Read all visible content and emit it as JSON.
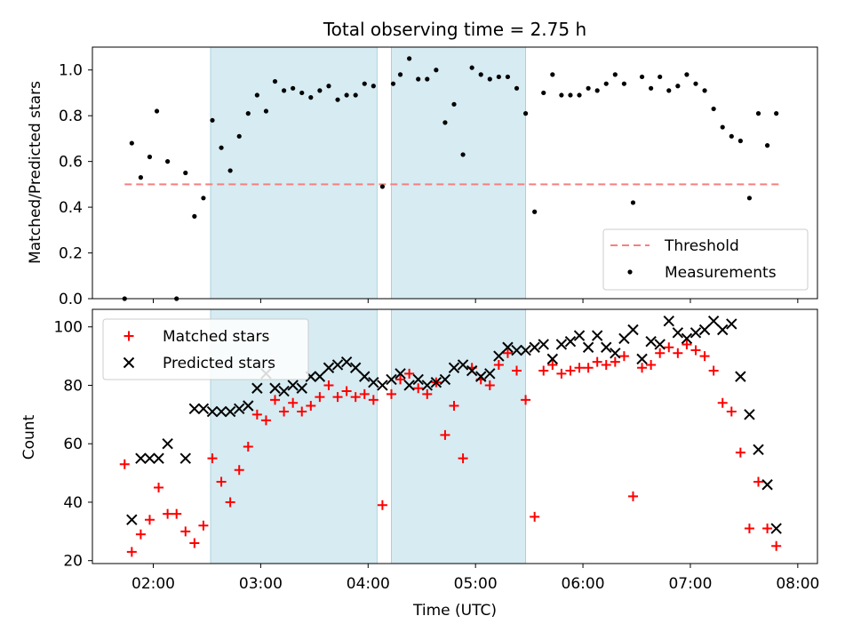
{
  "chart_data": [
    {
      "type": "scatter",
      "title": "Total observing time = 2.75 h",
      "xlabel": "",
      "ylabel": "Matched/Predicted stars",
      "xlim": [
        "01:26",
        "08:11"
      ],
      "ylim": [
        0,
        1.1
      ],
      "yticks": [
        "0.0",
        "0.2",
        "0.4",
        "0.6",
        "0.8",
        "1.0"
      ],
      "shaded_intervals": [
        [
          "02:32",
          "04:05"
        ],
        [
          "04:13",
          "05:28"
        ]
      ],
      "legend_position": "lower right",
      "threshold": {
        "name": "Threshold",
        "y": 0.5,
        "x": [
          "01:44",
          "07:50"
        ],
        "color": "#f77f7f"
      },
      "series": [
        {
          "name": "Measurements",
          "color": "#000000",
          "marker": "dot",
          "points": [
            [
              "01:44",
              0.0
            ],
            [
              "01:48",
              0.68
            ],
            [
              "01:53",
              0.53
            ],
            [
              "01:58",
              0.62
            ],
            [
              "02:02",
              0.82
            ],
            [
              "02:08",
              0.6
            ],
            [
              "02:13",
              0.0
            ],
            [
              "02:18",
              0.55
            ],
            [
              "02:23",
              0.36
            ],
            [
              "02:28",
              0.44
            ],
            [
              "02:33",
              0.78
            ],
            [
              "02:38",
              0.66
            ],
            [
              "02:43",
              0.56
            ],
            [
              "02:48",
              0.71
            ],
            [
              "02:53",
              0.81
            ],
            [
              "02:58",
              0.89
            ],
            [
              "03:03",
              0.82
            ],
            [
              "03:08",
              0.95
            ],
            [
              "03:13",
              0.91
            ],
            [
              "03:18",
              0.92
            ],
            [
              "03:23",
              0.9
            ],
            [
              "03:28",
              0.88
            ],
            [
              "03:33",
              0.91
            ],
            [
              "03:38",
              0.93
            ],
            [
              "03:43",
              0.87
            ],
            [
              "03:48",
              0.89
            ],
            [
              "03:53",
              0.89
            ],
            [
              "03:58",
              0.94
            ],
            [
              "04:03",
              0.93
            ],
            [
              "04:08",
              0.49
            ],
            [
              "04:14",
              0.94
            ],
            [
              "04:18",
              0.98
            ],
            [
              "04:23",
              1.05
            ],
            [
              "04:28",
              0.96
            ],
            [
              "04:33",
              0.96
            ],
            [
              "04:38",
              1.0
            ],
            [
              "04:43",
              0.77
            ],
            [
              "04:48",
              0.85
            ],
            [
              "04:53",
              0.63
            ],
            [
              "04:58",
              1.01
            ],
            [
              "05:03",
              0.98
            ],
            [
              "05:08",
              0.96
            ],
            [
              "05:13",
              0.97
            ],
            [
              "05:18",
              0.97
            ],
            [
              "05:23",
              0.92
            ],
            [
              "05:28",
              0.81
            ],
            [
              "05:33",
              0.38
            ],
            [
              "05:38",
              0.9
            ],
            [
              "05:43",
              0.98
            ],
            [
              "05:48",
              0.89
            ],
            [
              "05:53",
              0.89
            ],
            [
              "05:58",
              0.89
            ],
            [
              "06:03",
              0.92
            ],
            [
              "06:08",
              0.91
            ],
            [
              "06:13",
              0.94
            ],
            [
              "06:18",
              0.98
            ],
            [
              "06:23",
              0.94
            ],
            [
              "06:28",
              0.42
            ],
            [
              "06:33",
              0.97
            ],
            [
              "06:38",
              0.92
            ],
            [
              "06:43",
              0.97
            ],
            [
              "06:48",
              0.91
            ],
            [
              "06:53",
              0.93
            ],
            [
              "06:58",
              0.98
            ],
            [
              "07:03",
              0.94
            ],
            [
              "07:08",
              0.91
            ],
            [
              "07:13",
              0.83
            ],
            [
              "07:18",
              0.75
            ],
            [
              "07:23",
              0.71
            ],
            [
              "07:28",
              0.69
            ],
            [
              "07:33",
              0.44
            ],
            [
              "07:38",
              0.81
            ],
            [
              "07:43",
              0.67
            ],
            [
              "07:48",
              0.81
            ]
          ]
        }
      ]
    },
    {
      "type": "scatter",
      "title": "",
      "xlabel": "Time (UTC)",
      "ylabel": "Count",
      "xlim": [
        "01:26",
        "08:11"
      ],
      "ylim": [
        19,
        106
      ],
      "xticks": [
        "02:00",
        "03:00",
        "04:00",
        "05:00",
        "06:00",
        "07:00",
        "08:00"
      ],
      "yticks": [
        "20",
        "40",
        "60",
        "80",
        "100"
      ],
      "shaded_intervals": [
        [
          "02:32",
          "04:05"
        ],
        [
          "04:13",
          "05:28"
        ]
      ],
      "legend_position": "upper left",
      "series": [
        {
          "name": "Matched stars",
          "color": "#ff0000",
          "marker": "plus",
          "points": [
            [
              "01:44",
              53
            ],
            [
              "01:48",
              23
            ],
            [
              "01:53",
              29
            ],
            [
              "01:58",
              34
            ],
            [
              "02:03",
              45
            ],
            [
              "02:08",
              36
            ],
            [
              "02:13",
              36
            ],
            [
              "02:18",
              30
            ],
            [
              "02:23",
              26
            ],
            [
              "02:28",
              32
            ],
            [
              "02:33",
              55
            ],
            [
              "02:38",
              47
            ],
            [
              "02:43",
              40
            ],
            [
              "02:48",
              51
            ],
            [
              "02:53",
              59
            ],
            [
              "02:58",
              70
            ],
            [
              "03:03",
              68
            ],
            [
              "03:08",
              75
            ],
            [
              "03:13",
              71
            ],
            [
              "03:18",
              74
            ],
            [
              "03:23",
              71
            ],
            [
              "03:28",
              73
            ],
            [
              "03:33",
              76
            ],
            [
              "03:38",
              80
            ],
            [
              "03:43",
              76
            ],
            [
              "03:48",
              78
            ],
            [
              "03:53",
              76
            ],
            [
              "03:58",
              77
            ],
            [
              "04:03",
              75
            ],
            [
              "04:08",
              39
            ],
            [
              "04:13",
              77
            ],
            [
              "04:18",
              82
            ],
            [
              "04:23",
              84
            ],
            [
              "04:28",
              79
            ],
            [
              "04:33",
              77
            ],
            [
              "04:38",
              81
            ],
            [
              "04:43",
              63
            ],
            [
              "04:48",
              73
            ],
            [
              "04:53",
              55
            ],
            [
              "04:58",
              86
            ],
            [
              "05:03",
              82
            ],
            [
              "05:08",
              80
            ],
            [
              "05:13",
              87
            ],
            [
              "05:18",
              91
            ],
            [
              "05:23",
              85
            ],
            [
              "05:28",
              75
            ],
            [
              "05:33",
              35
            ],
            [
              "05:38",
              85
            ],
            [
              "05:43",
              87
            ],
            [
              "05:48",
              84
            ],
            [
              "05:53",
              85
            ],
            [
              "05:58",
              86
            ],
            [
              "06:03",
              86
            ],
            [
              "06:08",
              88
            ],
            [
              "06:13",
              87
            ],
            [
              "06:18",
              88
            ],
            [
              "06:23",
              90
            ],
            [
              "06:28",
              42
            ],
            [
              "06:33",
              86
            ],
            [
              "06:38",
              87
            ],
            [
              "06:43",
              91
            ],
            [
              "06:48",
              93
            ],
            [
              "06:53",
              91
            ],
            [
              "06:58",
              94
            ],
            [
              "07:03",
              92
            ],
            [
              "07:08",
              90
            ],
            [
              "07:13",
              85
            ],
            [
              "07:18",
              74
            ],
            [
              "07:23",
              71
            ],
            [
              "07:28",
              57
            ],
            [
              "07:33",
              31
            ],
            [
              "07:38",
              47
            ],
            [
              "07:43",
              31
            ],
            [
              "07:48",
              25
            ]
          ]
        },
        {
          "name": "Predicted stars",
          "color": "#000000",
          "marker": "x",
          "points": [
            [
              "01:48",
              34
            ],
            [
              "01:53",
              55
            ],
            [
              "01:58",
              55
            ],
            [
              "02:03",
              55
            ],
            [
              "02:08",
              60
            ],
            [
              "02:18",
              55
            ],
            [
              "02:23",
              72
            ],
            [
              "02:28",
              72
            ],
            [
              "02:33",
              71
            ],
            [
              "02:38",
              71
            ],
            [
              "02:43",
              71
            ],
            [
              "02:48",
              72
            ],
            [
              "02:53",
              73
            ],
            [
              "02:58",
              79
            ],
            [
              "03:03",
              84
            ],
            [
              "03:08",
              79
            ],
            [
              "03:13",
              78
            ],
            [
              "03:18",
              80
            ],
            [
              "03:23",
              79
            ],
            [
              "03:28",
              83
            ],
            [
              "03:33",
              83
            ],
            [
              "03:38",
              86
            ],
            [
              "03:43",
              87
            ],
            [
              "03:48",
              88
            ],
            [
              "03:53",
              86
            ],
            [
              "03:58",
              83
            ],
            [
              "04:03",
              81
            ],
            [
              "04:08",
              80
            ],
            [
              "04:13",
              82
            ],
            [
              "04:18",
              84
            ],
            [
              "04:23",
              80
            ],
            [
              "04:28",
              82
            ],
            [
              "04:33",
              80
            ],
            [
              "04:38",
              81
            ],
            [
              "04:43",
              82
            ],
            [
              "04:48",
              86
            ],
            [
              "04:53",
              87
            ],
            [
              "04:58",
              85
            ],
            [
              "05:03",
              83
            ],
            [
              "05:08",
              84
            ],
            [
              "05:13",
              90
            ],
            [
              "05:18",
              93
            ],
            [
              "05:23",
              92
            ],
            [
              "05:28",
              92
            ],
            [
              "05:33",
              93
            ],
            [
              "05:38",
              94
            ],
            [
              "05:43",
              89
            ],
            [
              "05:48",
              94
            ],
            [
              "05:53",
              95
            ],
            [
              "05:58",
              97
            ],
            [
              "06:03",
              93
            ],
            [
              "06:08",
              97
            ],
            [
              "06:13",
              93
            ],
            [
              "06:18",
              91
            ],
            [
              "06:23",
              96
            ],
            [
              "06:28",
              99
            ],
            [
              "06:33",
              89
            ],
            [
              "06:38",
              95
            ],
            [
              "06:43",
              94
            ],
            [
              "06:48",
              102
            ],
            [
              "06:53",
              98
            ],
            [
              "06:58",
              96
            ],
            [
              "07:03",
              98
            ],
            [
              "07:08",
              99
            ],
            [
              "07:13",
              102
            ],
            [
              "07:18",
              99
            ],
            [
              "07:23",
              101
            ],
            [
              "07:28",
              83
            ],
            [
              "07:33",
              70
            ],
            [
              "07:38",
              58
            ],
            [
              "07:43",
              46
            ],
            [
              "07:48",
              31
            ]
          ]
        }
      ]
    }
  ]
}
